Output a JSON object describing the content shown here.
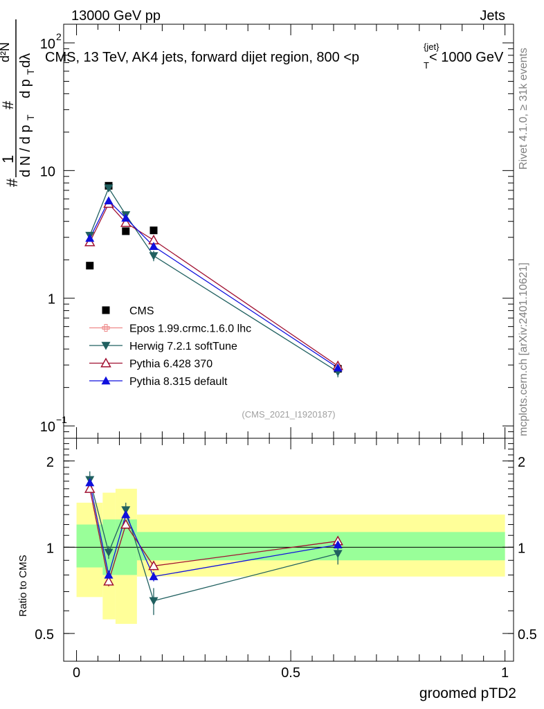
{
  "header": {
    "left": "13000 GeV pp",
    "right": "Jets"
  },
  "side_labels": {
    "rivet": "Rivet 4.1.0, ≥ 31k events",
    "mcplots": "mcplots.cern.ch [arXiv:2401.10621]"
  },
  "colors": {
    "cms": "#000000",
    "epos": "#ee8888",
    "herwig": "#206060",
    "pythia6": "#a01030",
    "pythia8": "#1010dd",
    "band_outer": "#ffff99",
    "band_inner": "#99ff99"
  },
  "chart_data": [
    {
      "type": "scatter",
      "title": "CMS, 13 TeV, AK4 jets, forward dijet region, 800 <p_T^{jet}< 1000 GeV",
      "ylabel_text": "1/N dN/dp_T  d²N/dp_T dλ",
      "yscale": "log",
      "ylim": [
        0.08,
        140
      ],
      "xlim": [
        -0.03,
        1.02
      ],
      "yticks": [
        {
          "value": 0.1,
          "label": "10",
          "sup": "−1"
        },
        {
          "value": 1,
          "label": "1",
          "sup": ""
        },
        {
          "value": 10,
          "label": "10",
          "sup": ""
        },
        {
          "value": 100,
          "label": "10",
          "sup": "2"
        }
      ],
      "watermark": "(CMS_2021_I1920187)",
      "legend_position": "center-left",
      "series": [
        {
          "name": "CMS",
          "key": "cms",
          "marker": "square",
          "x": [
            0.031,
            0.075,
            0.115,
            0.18,
            0.61
          ],
          "y": [
            1.8,
            7.6,
            3.35,
            3.4,
            0.28
          ],
          "err": [
            0,
            0,
            0,
            0,
            0
          ],
          "line": false
        },
        {
          "name": "Epos 1.99.crmc.1.6.0 lhc",
          "key": "epos",
          "marker": "cross",
          "x": [],
          "y": [],
          "err": [],
          "line": true
        },
        {
          "name": "Herwig 7.2.1 softTune",
          "key": "herwig",
          "marker": "tri-down",
          "x": [
            0.031,
            0.075,
            0.115,
            0.18,
            0.61
          ],
          "y": [
            3.1,
            7.3,
            4.5,
            2.15,
            0.265
          ],
          "err": [
            0.2,
            0.3,
            0.25,
            0.2,
            0.025
          ],
          "line": true
        },
        {
          "name": "Pythia 6.428 370",
          "key": "pythia6",
          "marker": "tri-up-open",
          "x": [
            0.031,
            0.075,
            0.115,
            0.18,
            0.61
          ],
          "y": [
            2.75,
            5.5,
            3.9,
            2.85,
            0.295
          ],
          "err": [
            0.12,
            0.15,
            0.12,
            0.1,
            0.012
          ],
          "line": true
        },
        {
          "name": "Pythia 8.315 default",
          "key": "pythia8",
          "marker": "tri-up",
          "x": [
            0.031,
            0.075,
            0.115,
            0.18,
            0.61
          ],
          "y": [
            2.95,
            5.8,
            4.25,
            2.55,
            0.285
          ],
          "err": [
            0.12,
            0.15,
            0.12,
            0.1,
            0.012
          ],
          "line": true
        }
      ]
    },
    {
      "type": "scatter",
      "ylabel": "Ratio to CMS",
      "xlabel": "groomed pTD2",
      "yscale": "log",
      "ylim": [
        0.4,
        2.4
      ],
      "xlim": [
        -0.03,
        1.02
      ],
      "yticks": [
        {
          "value": 0.5,
          "label": "0.5"
        },
        {
          "value": 1,
          "label": "1"
        },
        {
          "value": 2,
          "label": "2"
        }
      ],
      "xticks": [
        {
          "value": 0,
          "label": "0"
        },
        {
          "value": 0.5,
          "label": "0.5"
        },
        {
          "value": 1,
          "label": "1"
        }
      ],
      "bands": [
        {
          "x0": 0.0,
          "x1": 0.061,
          "outer": [
            0.67,
            1.43
          ],
          "inner": [
            0.85,
            1.2
          ]
        },
        {
          "x0": 0.061,
          "x1": 0.091,
          "outer": [
            0.56,
            1.55
          ],
          "inner": [
            0.8,
            1.25
          ]
        },
        {
          "x0": 0.091,
          "x1": 0.141,
          "outer": [
            0.54,
            1.6
          ],
          "inner": [
            0.8,
            1.25
          ]
        },
        {
          "x0": 0.141,
          "x1": 1.0,
          "outer": [
            0.79,
            1.3
          ],
          "inner": [
            0.9,
            1.13
          ]
        }
      ],
      "reference": 1,
      "series": [
        {
          "name": "Herwig 7.2.1 softTune",
          "key": "herwig",
          "marker": "tri-down",
          "x": [
            0.031,
            0.075,
            0.115,
            0.18,
            0.61
          ],
          "y": [
            1.72,
            0.96,
            1.35,
            0.65,
            0.95
          ],
          "err": [
            0.12,
            0.05,
            0.08,
            0.07,
            0.08
          ]
        },
        {
          "name": "Pythia 6.428 370",
          "key": "pythia6",
          "marker": "tri-up-open",
          "x": [
            0.031,
            0.075,
            0.115,
            0.18,
            0.61
          ],
          "y": [
            1.6,
            0.76,
            1.2,
            0.86,
            1.05
          ],
          "err": [
            0.05,
            0.03,
            0.04,
            0.03,
            0.04
          ]
        },
        {
          "name": "Pythia 8.315 default",
          "key": "pythia8",
          "marker": "tri-up",
          "x": [
            0.031,
            0.075,
            0.115,
            0.18,
            0.61
          ],
          "y": [
            1.68,
            0.8,
            1.3,
            0.79,
            1.02
          ],
          "err": [
            0.05,
            0.03,
            0.04,
            0.03,
            0.04
          ]
        }
      ]
    }
  ]
}
